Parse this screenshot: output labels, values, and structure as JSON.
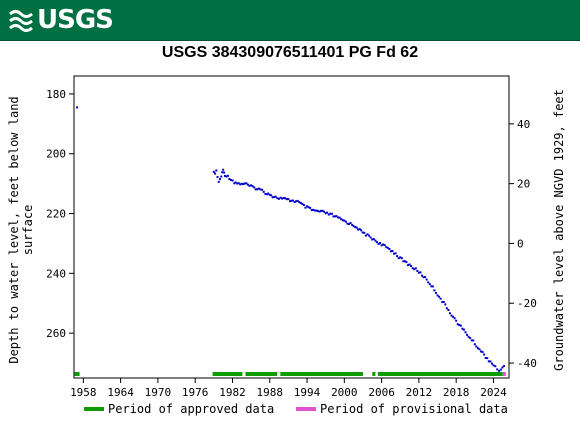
{
  "header": {
    "agency": "USGS",
    "logo_icon": "usgs-wave-logo-icon"
  },
  "chart_data": {
    "type": "scatter",
    "title": "USGS 384309076511401 PG Fd  62",
    "ylabel_left": [
      "Depth to water level, feet below land",
      "surface"
    ],
    "ylabel_right": "Groundwater level above NGVD 1929, feet",
    "xlim": [
      1956.5,
      2026.5
    ],
    "ylim_left": [
      275,
      174
    ],
    "ylim_right": [
      -45,
      56
    ],
    "x_ticks": [
      1958,
      1964,
      1970,
      1976,
      1982,
      1988,
      1994,
      2000,
      2006,
      2012,
      2018,
      2024
    ],
    "left_ticks": [
      180,
      200,
      220,
      240,
      260
    ],
    "right_ticks": [
      40,
      20,
      0,
      -20,
      -40
    ],
    "grid": false,
    "point_color": "#0000cc",
    "anchor_points": [
      [
        1957.0,
        184.5
      ],
      [
        1979.0,
        206.5
      ],
      [
        1979.4,
        206.0
      ],
      [
        1979.8,
        209.5
      ],
      [
        1980.2,
        207.5
      ],
      [
        1980.5,
        205.5
      ],
      [
        1980.8,
        207.0
      ],
      [
        1981.5,
        208.0
      ],
      [
        1982.3,
        209.5
      ],
      [
        1983.0,
        210.0
      ],
      [
        1984.0,
        210.0
      ],
      [
        1985.0,
        211.0
      ],
      [
        1986.5,
        212.0
      ],
      [
        1987.3,
        213.0
      ],
      [
        1988.0,
        213.5
      ],
      [
        1988.7,
        214.5
      ],
      [
        1990.0,
        215.0
      ],
      [
        1991.0,
        215.5
      ],
      [
        1992.5,
        216.0
      ],
      [
        1993.5,
        217.5
      ],
      [
        1995.0,
        219.0
      ],
      [
        1996.5,
        219.5
      ],
      [
        1998.0,
        220.5
      ],
      [
        1999.0,
        221.5
      ],
      [
        2000.0,
        222.5
      ],
      [
        2001.0,
        223.5
      ],
      [
        2002.0,
        224.5
      ],
      [
        2002.7,
        226.0
      ],
      [
        2005.0,
        229.0
      ],
      [
        2006.0,
        230.5
      ],
      [
        2007.0,
        231.5
      ],
      [
        2008.0,
        233.0
      ],
      [
        2009.0,
        235.0
      ],
      [
        2010.0,
        236.5
      ],
      [
        2011.0,
        238.0
      ],
      [
        2012.0,
        239.5
      ],
      [
        2013.0,
        241.5
      ],
      [
        2014.0,
        244.0
      ],
      [
        2015.0,
        247.0
      ],
      [
        2016.0,
        250.0
      ],
      [
        2017.0,
        253.0
      ],
      [
        2018.0,
        256.0
      ],
      [
        2019.0,
        258.5
      ],
      [
        2020.0,
        261.0
      ],
      [
        2021.0,
        263.5
      ],
      [
        2022.0,
        266.0
      ],
      [
        2023.0,
        268.5
      ],
      [
        2024.0,
        270.5
      ],
      [
        2024.6,
        272.5
      ],
      [
        2025.2,
        272.0
      ],
      [
        2025.7,
        271.0
      ]
    ],
    "periods": {
      "approved": {
        "name": "Period of approved data",
        "color": "#0d9d00",
        "ranges": [
          [
            1956.6,
            1957.4
          ],
          [
            1978.8,
            1983.6
          ],
          [
            1984.1,
            1989.2
          ],
          [
            1989.7,
            2003.0
          ],
          [
            2004.5,
            2005.0
          ],
          [
            2005.4,
            2025.5
          ]
        ]
      },
      "provisional": {
        "name": "Period of provisional data",
        "color": "#e252d0",
        "ranges": [
          [
            2025.5,
            2026.0
          ]
        ]
      }
    }
  }
}
